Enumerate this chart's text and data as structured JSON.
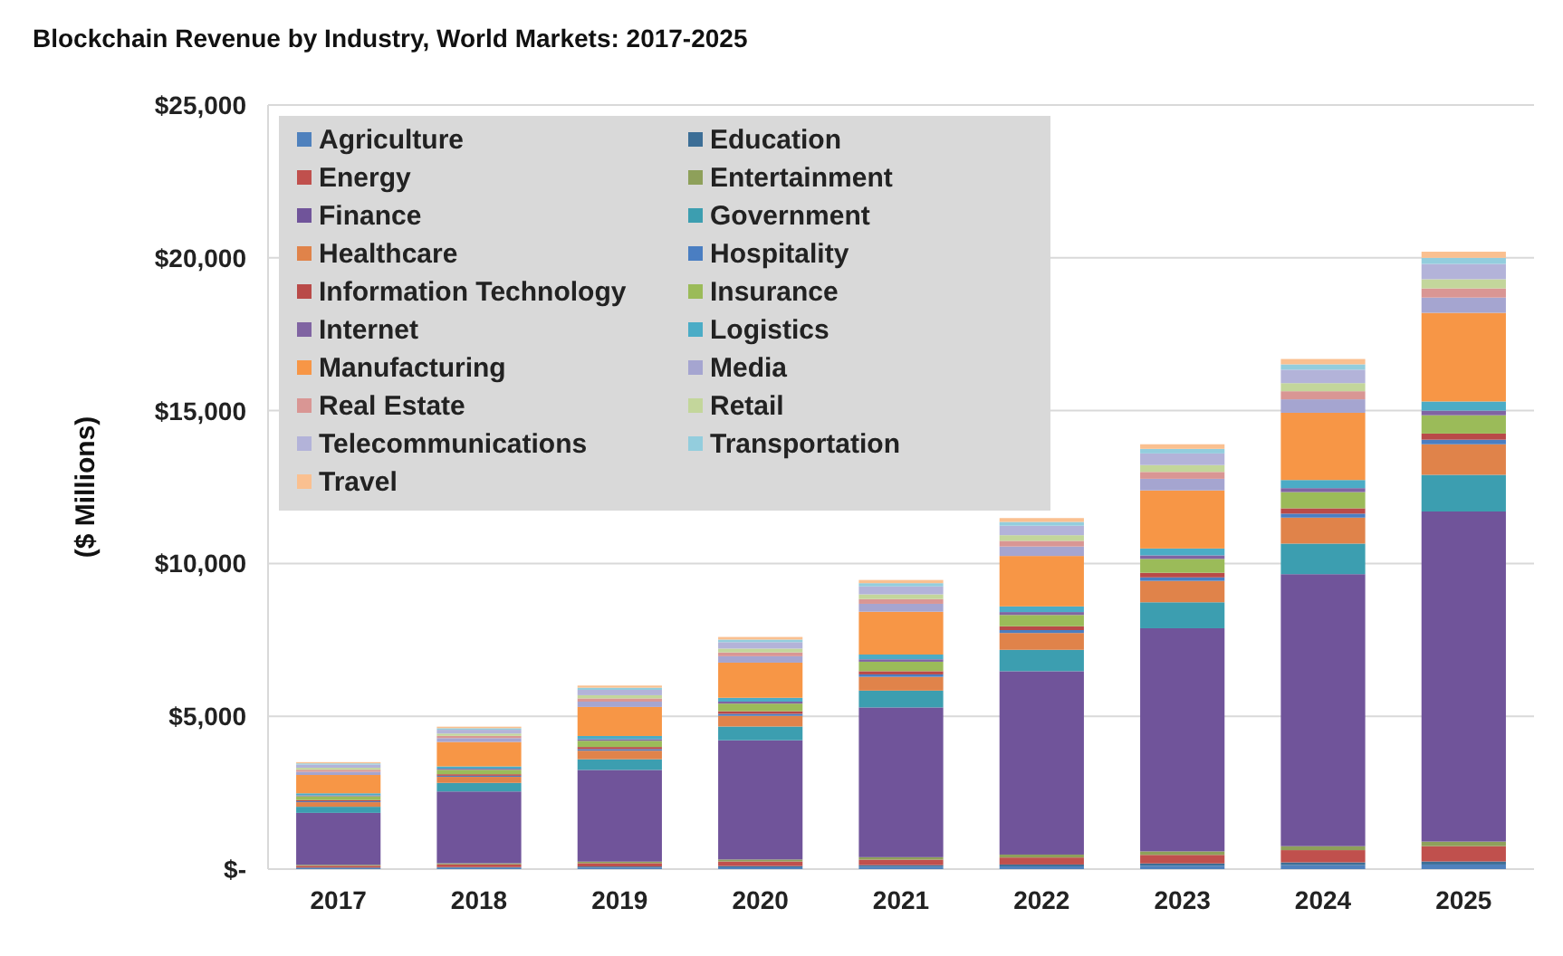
{
  "chart_data": {
    "type": "bar",
    "title": "Blockchain Revenue by Industry, World Markets: 2017-2025",
    "ylabel": "($ Millions)",
    "categories": [
      "2017",
      "2018",
      "2019",
      "2020",
      "2021",
      "2022",
      "2023",
      "2024",
      "2025"
    ],
    "stacked": true,
    "grid": "y",
    "legend": "top left",
    "ylim": [
      0,
      25000
    ],
    "yticks": [
      {
        "value": 0,
        "label": "$-"
      },
      {
        "value": 5000,
        "label": "$5,000"
      },
      {
        "value": 10000,
        "label": "$10,000"
      },
      {
        "value": 15000,
        "label": "$15,000"
      },
      {
        "value": 20000,
        "label": "$20,000"
      },
      {
        "value": 25000,
        "label": "$25,000"
      }
    ],
    "series": [
      {
        "name": "Agriculture",
        "color": "#4f81bd",
        "values": [
          30,
          40,
          50,
          60,
          80,
          90,
          110,
          130,
          150
        ]
      },
      {
        "name": "Education",
        "color": "#3c6e96",
        "values": [
          20,
          25,
          35,
          40,
          50,
          60,
          75,
          90,
          100
        ]
      },
      {
        "name": "Energy",
        "color": "#c0504d",
        "values": [
          60,
          90,
          110,
          150,
          180,
          230,
          280,
          400,
          500
        ]
      },
      {
        "name": "Entertainment",
        "color": "#8ea05a",
        "values": [
          30,
          35,
          50,
          65,
          80,
          95,
          115,
          130,
          150
        ]
      },
      {
        "name": "Finance",
        "color": "#70549a",
        "values": [
          1700,
          2350,
          3000,
          3900,
          4900,
          6000,
          7300,
          8900,
          10800
        ]
      },
      {
        "name": "Government",
        "color": "#3c9eb0",
        "values": [
          200,
          280,
          350,
          450,
          550,
          700,
          850,
          1000,
          1200
        ]
      },
      {
        "name": "Healthcare",
        "color": "#e0834a",
        "values": [
          150,
          200,
          280,
          350,
          450,
          550,
          700,
          850,
          1000
        ]
      },
      {
        "name": "Hospitality",
        "color": "#4a7ec2",
        "values": [
          30,
          35,
          50,
          65,
          80,
          95,
          115,
          130,
          150
        ]
      },
      {
        "name": "Information Technology",
        "color": "#b94a48",
        "values": [
          40,
          50,
          70,
          85,
          105,
          125,
          150,
          175,
          200
        ]
      },
      {
        "name": "Insurance",
        "color": "#9bbb59",
        "values": [
          125,
          145,
          205,
          250,
          310,
          370,
          455,
          530,
          600
        ]
      },
      {
        "name": "Internet",
        "color": "#8064a2",
        "values": [
          30,
          35,
          50,
          65,
          80,
          95,
          115,
          130,
          150
        ]
      },
      {
        "name": "Logistics",
        "color": "#4bacc6",
        "values": [
          65,
          75,
          105,
          125,
          155,
          185,
          225,
          265,
          300
        ]
      },
      {
        "name": "Manufacturing",
        "color": "#f79646",
        "values": [
          600,
          800,
          950,
          1150,
          1400,
          1650,
          1900,
          2200,
          2900
        ]
      },
      {
        "name": "Media",
        "color": "#a5a5d0",
        "values": [
          105,
          125,
          175,
          210,
          260,
          310,
          380,
          440,
          500
        ]
      },
      {
        "name": "Real Estate",
        "color": "#d99694",
        "values": [
          65,
          75,
          105,
          125,
          155,
          185,
          225,
          265,
          300
        ]
      },
      {
        "name": "Retail",
        "color": "#c3d69b",
        "values": [
          65,
          75,
          105,
          125,
          155,
          185,
          225,
          265,
          300
        ]
      },
      {
        "name": "Telecommunications",
        "color": "#b3b3d9",
        "values": [
          105,
          125,
          175,
          210,
          260,
          310,
          380,
          440,
          500
        ]
      },
      {
        "name": "Transportation",
        "color": "#93cddd",
        "values": [
          40,
          50,
          70,
          85,
          105,
          125,
          150,
          175,
          200
        ]
      },
      {
        "name": "Travel",
        "color": "#fac090",
        "values": [
          40,
          50,
          70,
          85,
          105,
          125,
          150,
          175,
          200
        ]
      }
    ]
  }
}
